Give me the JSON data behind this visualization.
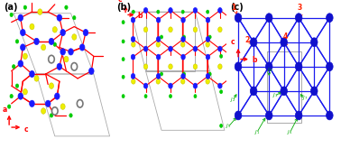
{
  "panels": [
    "a",
    "b",
    "c"
  ],
  "panel_labels": [
    "(a)",
    "(b)",
    "(c)"
  ],
  "bg_color": "white",
  "blue_color": "#1a1aff",
  "red_color": "#ff0000",
  "green_color": "#00cc00",
  "yellow_color": "#eeee00",
  "gray_color": "#888888",
  "panel_c_node_color": "#1010cc",
  "panel_c_line_color": "#1a1aee",
  "panel_c_box_color": "#aaaaaa",
  "J_label_color": "#00aa00",
  "number_label_color": "#ff2200",
  "axis_color": "#ff0000",
  "figsize": [
    3.78,
    1.64
  ],
  "dpi": 100
}
